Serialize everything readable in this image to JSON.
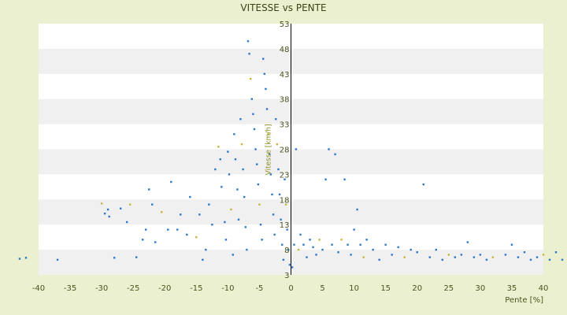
{
  "chart_data": {
    "type": "scatter",
    "title": "VITESSE vs PENTE",
    "xlabel": "Pente [%]",
    "ylabel": "Vitesse [km/h]",
    "xlim": [
      -40,
      40
    ],
    "ylim": [
      3,
      53
    ],
    "xticks": [
      -40,
      -35,
      -30,
      -25,
      -20,
      -15,
      -10,
      -5,
      0,
      5,
      10,
      15,
      20,
      25,
      30,
      35,
      40
    ],
    "yticks": [
      3,
      8,
      13,
      18,
      23,
      28,
      33,
      38,
      43,
      48,
      53
    ],
    "grid": "horizontal bands",
    "legend": "none",
    "colors": {
      "background": "#ebf1d0",
      "band_light": "#ffffff",
      "band_dark": "#f0f0f0",
      "points": "#2e78c8",
      "points_secondary": "#c8b43c",
      "axis": "#000000"
    },
    "series": [
      {
        "values": [
          [
            -43,
            6.2
          ],
          [
            -42,
            6.4
          ],
          [
            -37,
            6.0
          ],
          [
            -30,
            17.2
          ],
          [
            -29.5,
            15.2
          ],
          [
            -29,
            16.0
          ],
          [
            -28.8,
            14.6
          ],
          [
            -28,
            6.4
          ],
          [
            -27,
            16.2
          ],
          [
            -26,
            13.5
          ],
          [
            -25.5,
            17.0
          ],
          [
            -24.5,
            6.5
          ],
          [
            -23.5,
            10.0
          ],
          [
            -23,
            12.0
          ],
          [
            -22.5,
            20.0
          ],
          [
            -22,
            17.0
          ],
          [
            -21.5,
            9.5
          ],
          [
            -20.5,
            15.5
          ],
          [
            -19.5,
            12.0
          ],
          [
            -19,
            21.5
          ],
          [
            -18,
            12.0
          ],
          [
            -17.5,
            15.0
          ],
          [
            -16.5,
            11.0
          ],
          [
            -16,
            18.5
          ],
          [
            -15,
            10.5
          ],
          [
            -14.5,
            15.0
          ],
          [
            -14,
            6.0
          ],
          [
            -13.5,
            8.0
          ],
          [
            -13,
            17.0
          ],
          [
            -12.5,
            13.0
          ],
          [
            -12,
            24.0
          ],
          [
            -11.5,
            28.5
          ],
          [
            -11.2,
            26.0
          ],
          [
            -11,
            20.5
          ],
          [
            -10.5,
            13.5
          ],
          [
            -10.3,
            10.0
          ],
          [
            -10,
            27.5
          ],
          [
            -9.8,
            23.0
          ],
          [
            -9.5,
            16.0
          ],
          [
            -9.2,
            7.0
          ],
          [
            -9,
            31.0
          ],
          [
            -8.8,
            26.0
          ],
          [
            -8.5,
            20.0
          ],
          [
            -8.3,
            14.0
          ],
          [
            -8,
            34.0
          ],
          [
            -7.8,
            29.0
          ],
          [
            -7.6,
            24.0
          ],
          [
            -7.4,
            18.5
          ],
          [
            -7.2,
            12.5
          ],
          [
            -7,
            8.0
          ],
          [
            -6.8,
            49.5
          ],
          [
            -6.6,
            47.0
          ],
          [
            -6.4,
            42.0
          ],
          [
            -6.2,
            38.0
          ],
          [
            -6,
            35.0
          ],
          [
            -5.8,
            32.0
          ],
          [
            -5.6,
            28.0
          ],
          [
            -5.4,
            25.0
          ],
          [
            -5.2,
            21.0
          ],
          [
            -5,
            17.0
          ],
          [
            -4.8,
            13.0
          ],
          [
            -4.6,
            10.0
          ],
          [
            -4.4,
            46.0
          ],
          [
            -4.2,
            43.0
          ],
          [
            -4,
            40.0
          ],
          [
            -3.8,
            36.0
          ],
          [
            -3.6,
            31.0
          ],
          [
            -3.4,
            27.0
          ],
          [
            -3.2,
            23.0
          ],
          [
            -3,
            19.0
          ],
          [
            -2.8,
            15.0
          ],
          [
            -2.6,
            11.0
          ],
          [
            -2.4,
            34.0
          ],
          [
            -2.2,
            29.0
          ],
          [
            -2,
            24.0
          ],
          [
            -1.8,
            19.0
          ],
          [
            -1.6,
            14.0
          ],
          [
            -1.4,
            9.0
          ],
          [
            -1.2,
            6.0
          ],
          [
            -1,
            22.0
          ],
          [
            -0.8,
            17.0
          ],
          [
            -0.6,
            12.0
          ],
          [
            -0.4,
            8.0
          ],
          [
            -0.2,
            5.0
          ],
          [
            0.2,
            4.5
          ],
          [
            0.5,
            9.0
          ],
          [
            0.8,
            28.0
          ],
          [
            1.2,
            8.0
          ],
          [
            1.5,
            11.0
          ],
          [
            2,
            9.0
          ],
          [
            2.5,
            6.5
          ],
          [
            3,
            10.0
          ],
          [
            3.5,
            8.5
          ],
          [
            4,
            7.0
          ],
          [
            4.5,
            10.0
          ],
          [
            5,
            8.0
          ],
          [
            5.5,
            22.0
          ],
          [
            6,
            28.0
          ],
          [
            6.5,
            9.0
          ],
          [
            7,
            27.0
          ],
          [
            7.5,
            7.5
          ],
          [
            8,
            10.0
          ],
          [
            8.5,
            22.0
          ],
          [
            9,
            9.0
          ],
          [
            9.5,
            7.0
          ],
          [
            10,
            12.0
          ],
          [
            10.5,
            16.0
          ],
          [
            11,
            9.0
          ],
          [
            11.5,
            6.5
          ],
          [
            12,
            10.0
          ],
          [
            13,
            8.0
          ],
          [
            14,
            6.0
          ],
          [
            15,
            9.0
          ],
          [
            16,
            7.0
          ],
          [
            17,
            8.5
          ],
          [
            18,
            6.5
          ],
          [
            19,
            8.0
          ],
          [
            20,
            7.5
          ],
          [
            21,
            21.0
          ],
          [
            22,
            6.5
          ],
          [
            23,
            8.0
          ],
          [
            24,
            6.0
          ],
          [
            25,
            7.0
          ],
          [
            26,
            6.5
          ],
          [
            27,
            7.0
          ],
          [
            28,
            9.5
          ],
          [
            29,
            6.5
          ],
          [
            30,
            7.0
          ],
          [
            31,
            6.0
          ],
          [
            32,
            6.5
          ],
          [
            34,
            7.0
          ],
          [
            35,
            9.0
          ],
          [
            36,
            6.5
          ],
          [
            37,
            7.5
          ],
          [
            38,
            6.0
          ],
          [
            39,
            6.5
          ],
          [
            40,
            7.0
          ],
          [
            41,
            6.0
          ],
          [
            42,
            7.5
          ],
          [
            43,
            6.0
          ]
        ]
      }
    ]
  }
}
